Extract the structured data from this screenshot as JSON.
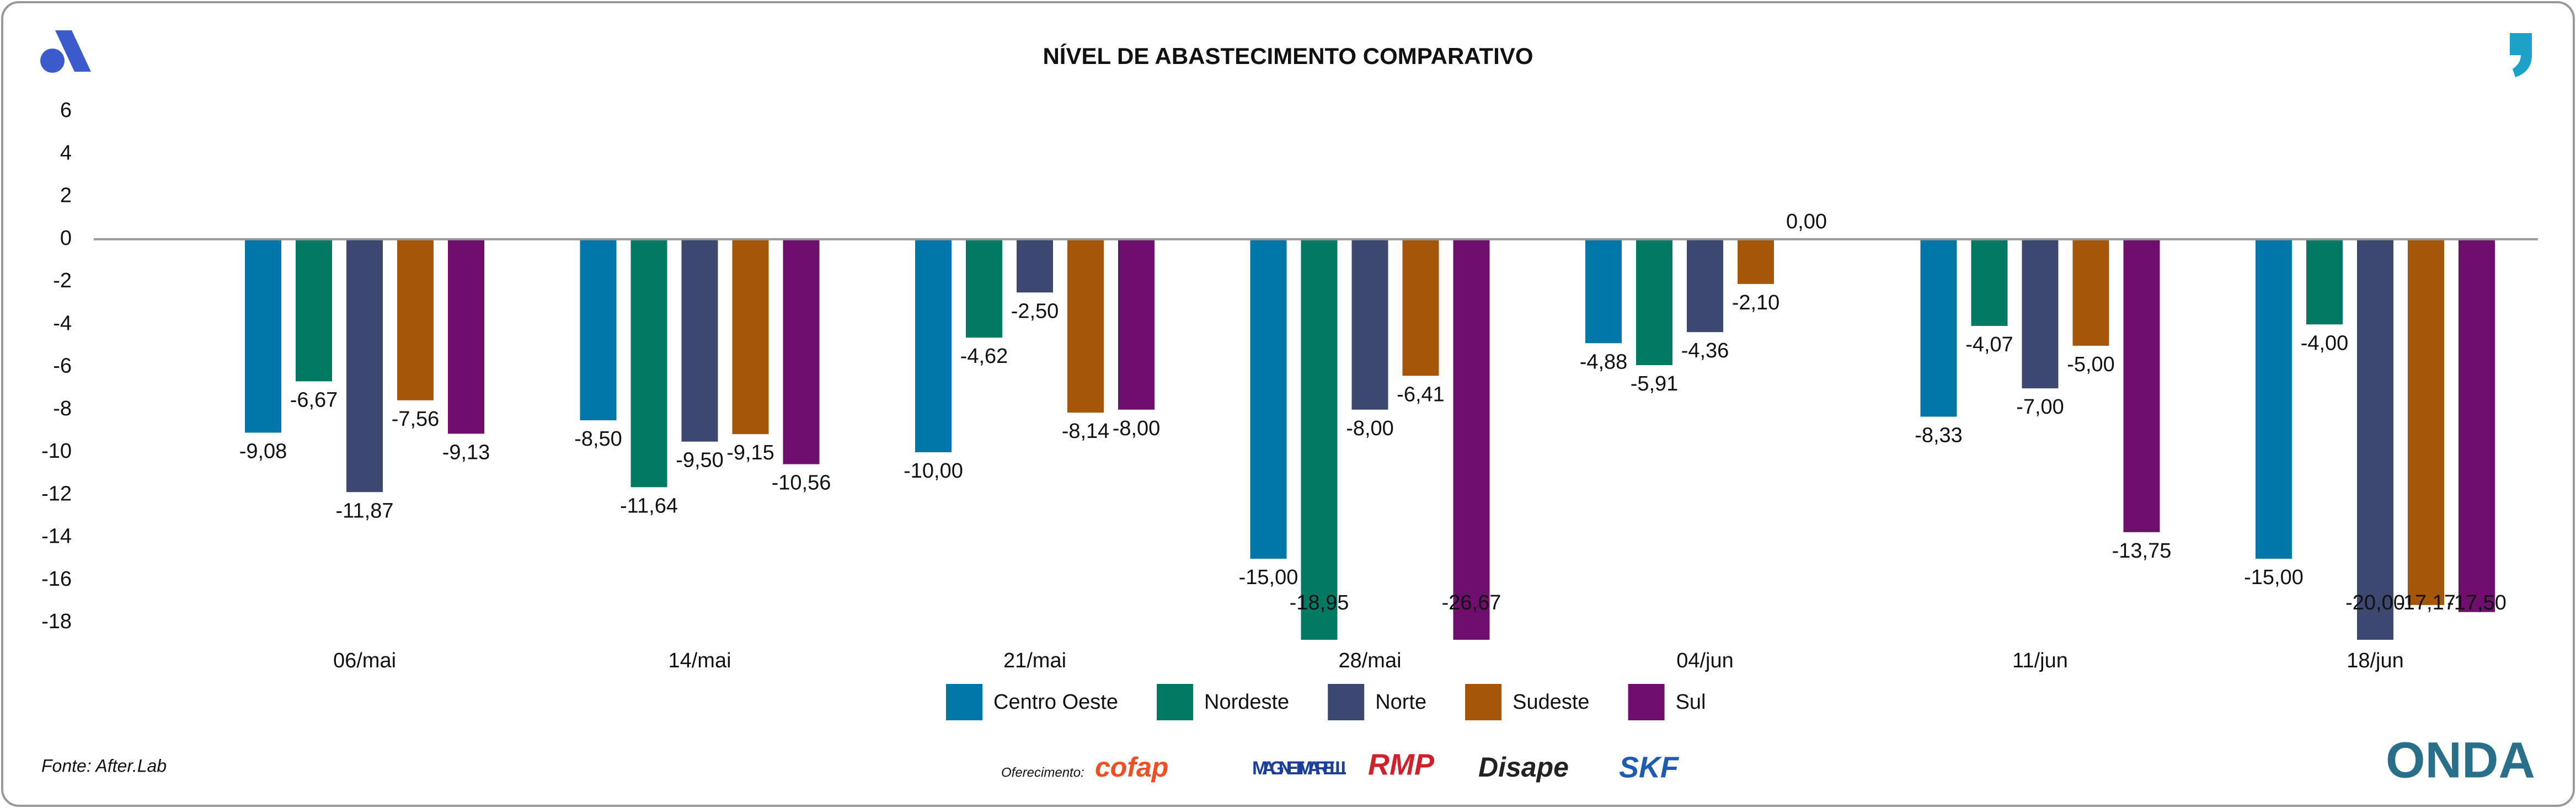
{
  "chart_data": {
    "type": "bar",
    "title": "NÍVEL DE ABASTECIMENTO COMPARATIVO",
    "categories": [
      "06/mai",
      "14/mai",
      "21/mai",
      "28/mai",
      "04/jun",
      "11/jun",
      "18/jun"
    ],
    "series": [
      {
        "name": "Centro Oeste",
        "color": "#0077a8",
        "values": [
          -9.08,
          -8.5,
          -10,
          -15,
          -4.88,
          -8.33,
          -15
        ],
        "value_labels": [
          "-9,08",
          "-8,50",
          "-10,00",
          "-15,00",
          "-4,88",
          "-8,33",
          "-15,00"
        ]
      },
      {
        "name": "Nordeste",
        "color": "#007a63",
        "values": [
          -6.67,
          -11.64,
          -4.62,
          -18.95,
          -5.91,
          -4.07,
          -4
        ],
        "value_labels": [
          "-6,67",
          "-11,64",
          "-4,62",
          "-18,95",
          "-5,91",
          "-4,07",
          "-4,00"
        ]
      },
      {
        "name": "Norte",
        "color": "#3d4870",
        "values": [
          -11.87,
          -9.5,
          -2.5,
          -8,
          -4.36,
          -7,
          -20
        ],
        "value_labels": [
          "-11,87",
          "-9,50",
          "-2,50",
          "-8,00",
          "-4,36",
          "-7,00",
          "-20,00"
        ]
      },
      {
        "name": "Sudeste",
        "color": "#a65608",
        "values": [
          -7.56,
          -9.15,
          -8.14,
          -6.41,
          -2.1,
          -5,
          -17.17
        ],
        "value_labels": [
          "-7,56",
          "-9,15",
          "-8,14",
          "-6,41",
          "-2,10",
          "-5,00",
          "-17,17"
        ]
      },
      {
        "name": "Sul",
        "color": "#6e0f6e",
        "values": [
          -9.13,
          -10.56,
          -8,
          -26.67,
          0,
          -13.75,
          -17.5
        ],
        "value_labels": [
          "-9,13",
          "-10,56",
          "-8,00",
          "-26,67",
          "0,00",
          "-13,75",
          "-17,50"
        ]
      }
    ],
    "ylim": [
      -18,
      6
    ],
    "yticks": [
      6,
      4,
      2,
      0,
      -2,
      -4,
      -6,
      -8,
      -10,
      -12,
      -14,
      -16,
      -18
    ],
    "legend": "bottom",
    "source": "Fonte: After.Lab",
    "sponsor_label": "Oferecimento:",
    "sponsors": [
      "cofap",
      "MAGNETI MARELLI",
      "RMP",
      "Disape",
      "SKF",
      "ONDA"
    ]
  }
}
